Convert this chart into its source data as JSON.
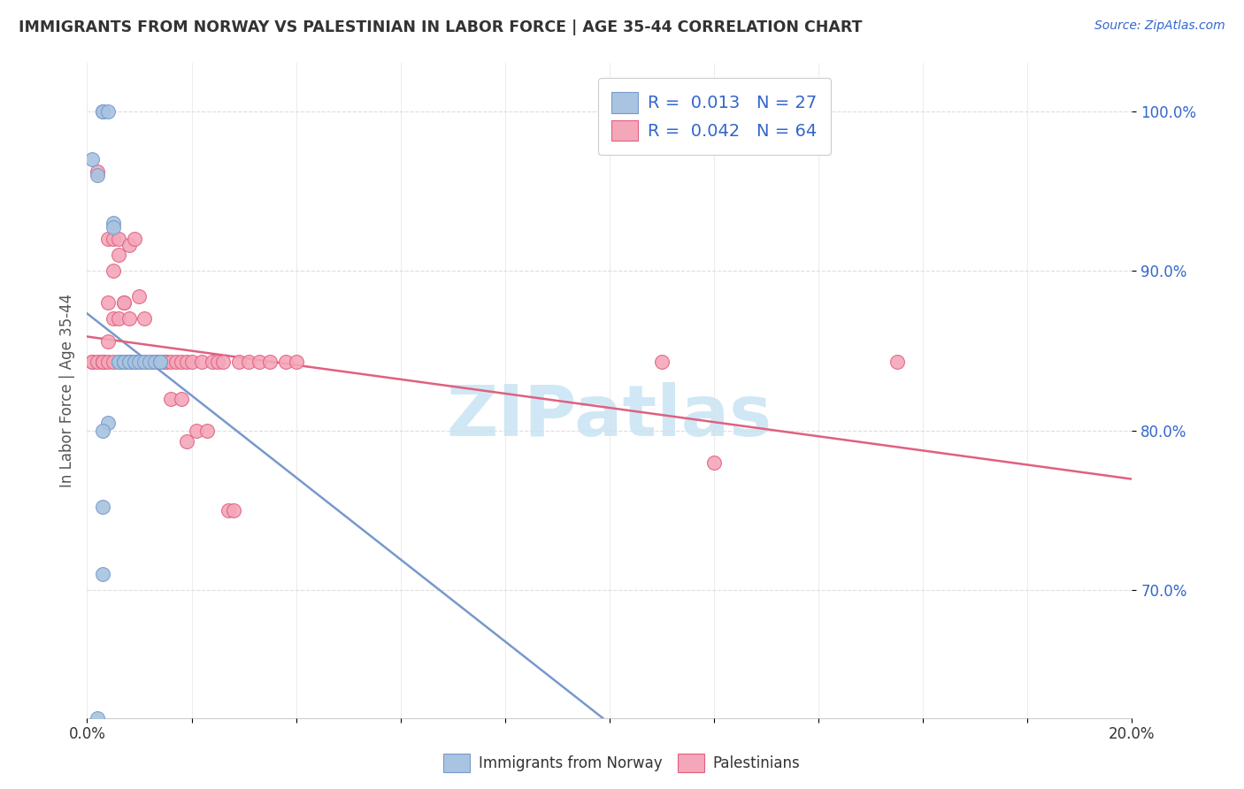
{
  "title": "IMMIGRANTS FROM NORWAY VS PALESTINIAN IN LABOR FORCE | AGE 35-44 CORRELATION CHART",
  "source": "Source: ZipAtlas.com",
  "ylabel": "In Labor Force | Age 35-44",
  "norway_color": "#a8c4e0",
  "palestine_color": "#f4a7b9",
  "norway_R": 0.013,
  "norway_N": 27,
  "palestine_R": 0.042,
  "palestine_N": 64,
  "legend_text_color": "#3366cc",
  "norway_x": [
    0.001,
    0.002,
    0.003,
    0.003,
    0.004,
    0.005,
    0.005,
    0.006,
    0.006,
    0.007,
    0.007,
    0.007,
    0.008,
    0.008,
    0.009,
    0.009,
    0.01,
    0.011,
    0.012,
    0.013,
    0.014,
    0.014,
    0.004,
    0.003,
    0.003,
    0.003,
    0.002
  ],
  "norway_y": [
    0.97,
    0.96,
    1.0,
    1.0,
    1.0,
    0.93,
    0.927,
    0.843,
    0.843,
    0.843,
    0.843,
    0.843,
    0.843,
    0.843,
    0.843,
    0.843,
    0.843,
    0.843,
    0.843,
    0.843,
    0.843,
    0.843,
    0.805,
    0.8,
    0.752,
    0.71,
    0.62
  ],
  "palestine_x": [
    0.001,
    0.001,
    0.002,
    0.002,
    0.003,
    0.003,
    0.003,
    0.004,
    0.004,
    0.004,
    0.004,
    0.005,
    0.005,
    0.005,
    0.005,
    0.006,
    0.006,
    0.006,
    0.007,
    0.007,
    0.007,
    0.007,
    0.008,
    0.008,
    0.008,
    0.009,
    0.009,
    0.01,
    0.01,
    0.011,
    0.011,
    0.012,
    0.013,
    0.013,
    0.014,
    0.014,
    0.015,
    0.015,
    0.015,
    0.016,
    0.016,
    0.017,
    0.018,
    0.018,
    0.019,
    0.019,
    0.02,
    0.021,
    0.022,
    0.023,
    0.024,
    0.025,
    0.026,
    0.027,
    0.028,
    0.029,
    0.031,
    0.033,
    0.035,
    0.038,
    0.04,
    0.11,
    0.12,
    0.155
  ],
  "palestine_y": [
    0.843,
    0.843,
    0.962,
    0.843,
    0.843,
    0.843,
    0.843,
    0.92,
    0.88,
    0.856,
    0.843,
    0.92,
    0.9,
    0.87,
    0.843,
    0.92,
    0.91,
    0.87,
    0.88,
    0.88,
    0.843,
    0.843,
    0.916,
    0.87,
    0.843,
    0.92,
    0.843,
    0.884,
    0.843,
    0.87,
    0.843,
    0.843,
    0.843,
    0.843,
    0.843,
    0.843,
    0.843,
    0.843,
    0.843,
    0.843,
    0.82,
    0.843,
    0.843,
    0.82,
    0.843,
    0.793,
    0.843,
    0.8,
    0.843,
    0.8,
    0.843,
    0.843,
    0.843,
    0.75,
    0.75,
    0.843,
    0.843,
    0.843,
    0.843,
    0.843,
    0.843,
    0.843,
    0.78,
    0.843
  ],
  "background_color": "#ffffff",
  "grid_color": "#dddddd",
  "watermark_text": "ZIPatlas",
  "watermark_color": "#d0e8f5",
  "trend_norway_color": "#7799cc",
  "trend_palestine_color": "#e06080",
  "xlim": [
    0.0,
    0.2
  ],
  "ylim": [
    0.62,
    1.03
  ]
}
